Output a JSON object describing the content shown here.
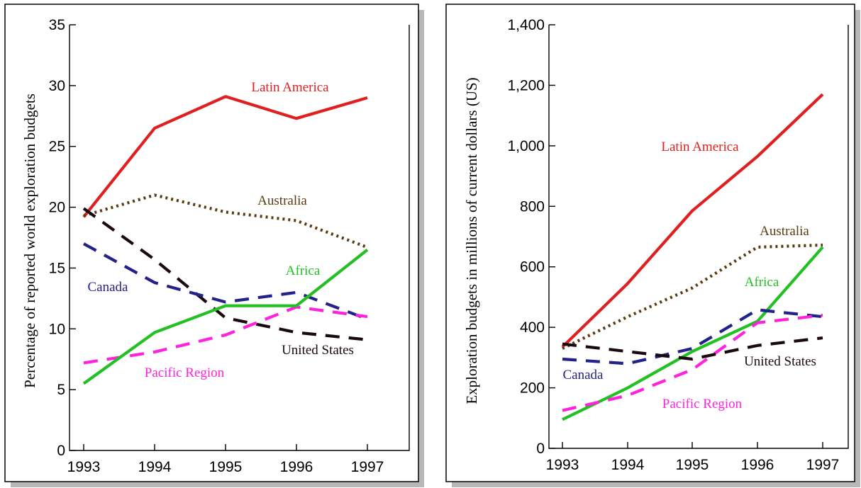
{
  "chart_data": [
    {
      "type": "line",
      "ylabel": "Percentage of reported world exploration budgets",
      "xlabel": "",
      "x": [
        "1993",
        "1994",
        "1995",
        "1996",
        "1997"
      ],
      "yticks": [
        "0",
        "5",
        "10",
        "15",
        "20",
        "25",
        "30",
        "35"
      ],
      "ylim": [
        0,
        35
      ],
      "grid": false,
      "legend": "inline labels",
      "series": [
        {
          "name": "Latin America",
          "color": "#e02020",
          "dash": "solid",
          "values": [
            19.2,
            26.5,
            29.1,
            27.3,
            29.0
          ]
        },
        {
          "name": "Australia",
          "color": "#5a3a10",
          "dash": "dotted",
          "values": [
            19.3,
            21.0,
            19.6,
            18.9,
            16.7
          ]
        },
        {
          "name": "United States",
          "color": "#1a0a10",
          "dash": "dashed",
          "values": [
            19.9,
            15.7,
            10.9,
            9.7,
            9.1
          ]
        },
        {
          "name": "Canada",
          "color": "#22228a",
          "dash": "dashed",
          "values": [
            17.0,
            13.8,
            12.2,
            13.0,
            10.8
          ]
        },
        {
          "name": "Pacific Region",
          "color": "#ff22dd",
          "dash": "dashed",
          "values": [
            7.2,
            8.1,
            9.5,
            11.8,
            11.0
          ]
        },
        {
          "name": "Africa",
          "color": "#22c022",
          "dash": "solid",
          "values": [
            5.5,
            9.7,
            11.9,
            11.9,
            16.5
          ]
        }
      ]
    },
    {
      "type": "line",
      "ylabel": "Exploration budgets in millions of current dollars (US)",
      "xlabel": "",
      "x": [
        "1993",
        "1994",
        "1995",
        "1996",
        "1997"
      ],
      "yticks": [
        "0",
        "200",
        "400",
        "600",
        "800",
        "1,000",
        "1,200",
        "1,400"
      ],
      "ylim": [
        0,
        1400
      ],
      "grid": false,
      "legend": "inline labels",
      "series": [
        {
          "name": "Latin America",
          "color": "#e02020",
          "dash": "solid",
          "values": [
            335,
            545,
            785,
            965,
            1170
          ]
        },
        {
          "name": "Australia",
          "color": "#5a3a10",
          "dash": "dotted",
          "values": [
            330,
            435,
            530,
            665,
            672
          ]
        },
        {
          "name": "Africa",
          "color": "#22c022",
          "dash": "solid",
          "values": [
            95,
            200,
            320,
            420,
            665
          ]
        },
        {
          "name": "Canada",
          "color": "#22228a",
          "dash": "dashed",
          "values": [
            295,
            280,
            330,
            458,
            435
          ]
        },
        {
          "name": "Pacific Region",
          "color": "#ff22dd",
          "dash": "dashed",
          "values": [
            125,
            175,
            260,
            415,
            440
          ]
        },
        {
          "name": "United States",
          "color": "#1a0a10",
          "dash": "dashed",
          "values": [
            345,
            320,
            295,
            340,
            365
          ]
        }
      ]
    }
  ]
}
